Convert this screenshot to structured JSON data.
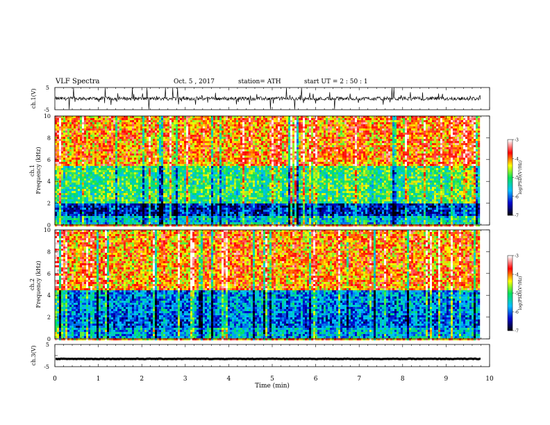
{
  "header": {
    "title": "VLF  Spectra",
    "date": "Oct. 5  , 2017",
    "station": "station= ATH",
    "start_time": "start  UT  =   2  : 50 : 1"
  },
  "chart_data": [
    {
      "type": "line",
      "panel": "ch1-waveform",
      "ylabel": "ch.1(V)",
      "ylim": [
        -5,
        5
      ],
      "yticks": [
        "5",
        "-5"
      ],
      "xlim": [
        0,
        10
      ],
      "baseline": 0,
      "series_color": "#000000",
      "style": "noisy"
    },
    {
      "type": "heatmap",
      "panel": "ch1-spectrogram",
      "ylabel_top": "ch.1",
      "ylabel": "Frequency  (kHz)",
      "ylim": [
        0,
        10
      ],
      "yticks": [
        "0",
        "2",
        "4",
        "6",
        "8",
        "10"
      ],
      "xlim": [
        0,
        9.8
      ],
      "colorbar": {
        "label": "log(PSD)(V²/Hz)",
        "range": [
          -7,
          -3
        ],
        "ticks": [
          "-3",
          "-4",
          "-5",
          "-6",
          "-7"
        ],
        "colors": [
          "#000000",
          "#0000cc",
          "#00bfff",
          "#00e060",
          "#ffff00",
          "#ff0000",
          "#ffffff"
        ]
      },
      "bands": [
        {
          "from": 0,
          "to": 0.8,
          "level": -5.5
        },
        {
          "from": 0.8,
          "to": 2.0,
          "level": -6.3
        },
        {
          "from": 2.0,
          "to": 5.5,
          "level": -5.0
        },
        {
          "from": 5.5,
          "to": 10,
          "level": -4.0
        }
      ]
    },
    {
      "type": "heatmap",
      "panel": "ch2-spectrogram",
      "ylabel_top": "ch.2",
      "ylabel": "Frequency  (kHz)",
      "ylim": [
        0,
        10
      ],
      "yticks": [
        "0",
        "2",
        "4",
        "6",
        "8",
        "10"
      ],
      "xlim": [
        0,
        9.8
      ],
      "colorbar": {
        "label": "log(PSD)(V²/Hz)",
        "range": [
          -7,
          -3
        ],
        "ticks": [
          "-3",
          "-4",
          "-5",
          "-6",
          "-7"
        ],
        "colors": [
          "#000000",
          "#0000cc",
          "#00bfff",
          "#00e060",
          "#ffff00",
          "#ff0000",
          "#ffffff"
        ]
      },
      "bands": [
        {
          "from": 0,
          "to": 1.0,
          "level": -5.6
        },
        {
          "from": 1.0,
          "to": 2.2,
          "level": -6.0
        },
        {
          "from": 2.2,
          "to": 4.5,
          "level": -5.8
        },
        {
          "from": 4.5,
          "to": 10,
          "level": -4.0
        }
      ]
    },
    {
      "type": "line",
      "panel": "ch3-waveform",
      "ylabel": "ch.3(V)",
      "ylim": [
        -5,
        5
      ],
      "yticks": [
        "5",
        "-5"
      ],
      "xlim": [
        0,
        10
      ],
      "baseline": -1.5,
      "series_color": "#000000",
      "style": "thick-flat"
    }
  ],
  "x_axis": {
    "label": "Time  (min)",
    "ticks": [
      "0",
      "1",
      "2",
      "3",
      "4",
      "5",
      "6",
      "7",
      "8",
      "9",
      "10"
    ],
    "range": [
      0,
      10
    ]
  }
}
